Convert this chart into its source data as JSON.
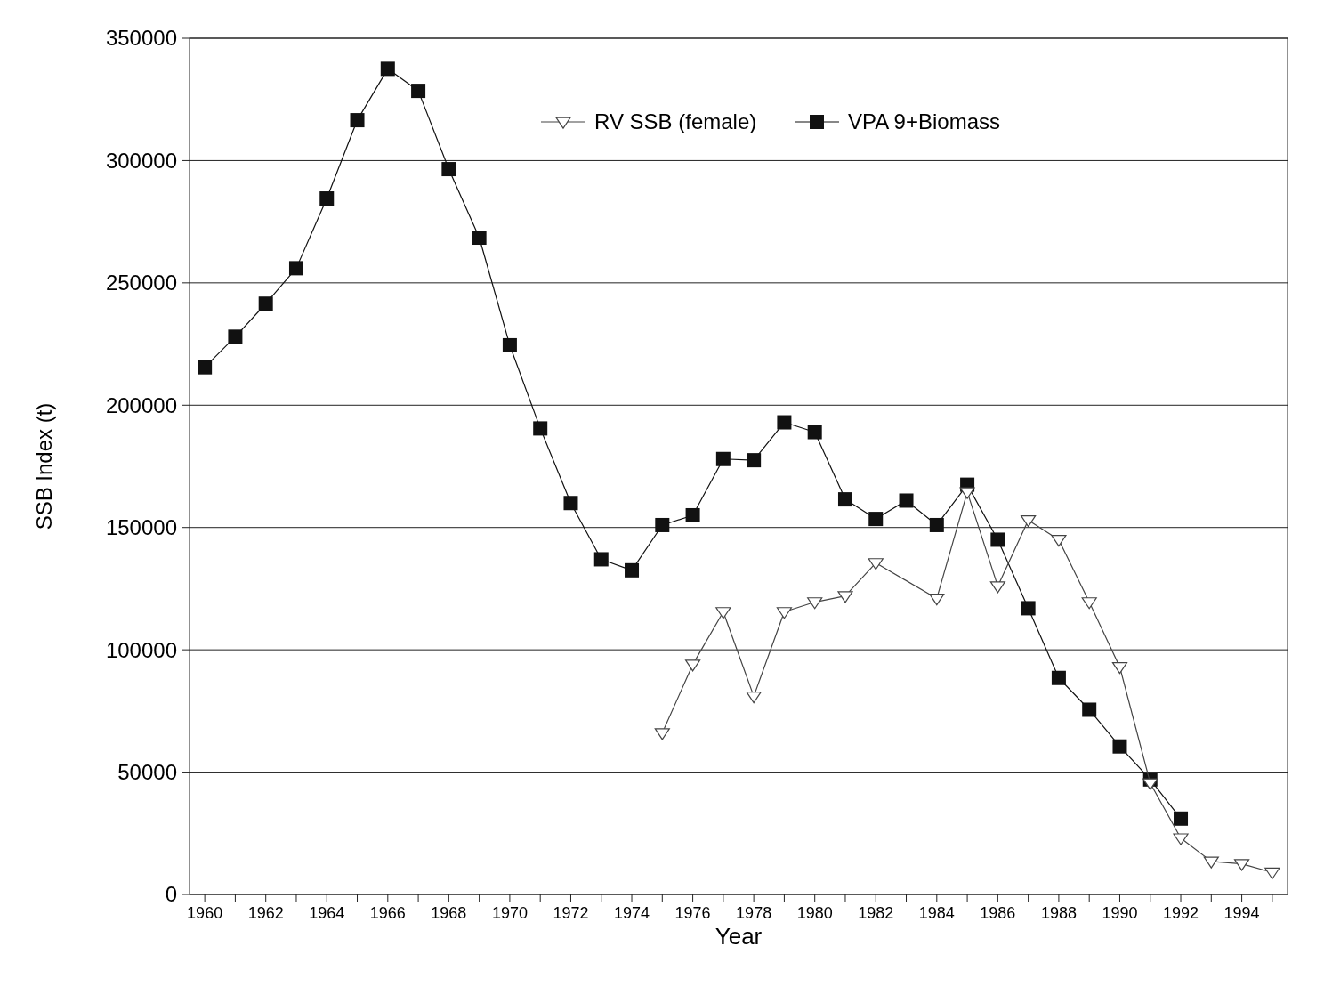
{
  "chart_data": {
    "type": "line",
    "xlabel": "Year",
    "ylabel": "SSB Index (t)",
    "xlim": [
      1959.5,
      1995.5
    ],
    "ylim": [
      0,
      350000
    ],
    "yticks": [
      0,
      50000,
      100000,
      150000,
      200000,
      250000,
      300000,
      350000
    ],
    "xticks": [
      1960,
      {
        "value": 1961,
        "label": null
      },
      1962,
      {
        "value": 1963,
        "label": null
      },
      1964,
      {
        "value": 1965,
        "label": null
      },
      1966,
      {
        "value": 1967,
        "label": null
      },
      1968,
      {
        "value": 1969,
        "label": null
      },
      1970,
      {
        "value": 1971,
        "label": null
      },
      1972,
      {
        "value": 1973,
        "label": null
      },
      1974,
      {
        "value": 1975,
        "label": null
      },
      1976,
      {
        "value": 1977,
        "label": null
      },
      1978,
      {
        "value": 1979,
        "label": null
      },
      1980,
      {
        "value": 1981,
        "label": null
      },
      1982,
      {
        "value": 1983,
        "label": null
      },
      1984,
      {
        "value": 1985,
        "label": null
      },
      1986,
      {
        "value": 1987,
        "label": null
      },
      1988,
      {
        "value": 1989,
        "label": null
      },
      1990,
      {
        "value": 1991,
        "label": null
      },
      1992,
      {
        "value": 1993,
        "label": null
      },
      1994,
      {
        "value": 1995,
        "label": null
      }
    ],
    "grid": "y",
    "legend": "top right",
    "series": [
      {
        "name": "RV SSB (female)",
        "color": "#444444",
        "marker": "triangle",
        "x": [
          1975,
          1976,
          1977,
          1978,
          1979,
          1980,
          1981,
          1982,
          1984,
          1985,
          1986,
          1987,
          1988,
          1989,
          1990,
          1991,
          1992,
          1993,
          1994,
          1995
        ],
        "values": [
          66000,
          94000,
          115500,
          81000,
          115500,
          119500,
          122000,
          135500,
          121000,
          164500,
          126000,
          153000,
          145000,
          119500,
          93000,
          45500,
          23000,
          13500,
          12500,
          9000
        ]
      },
      {
        "name": "VPA 9+Biomass",
        "color": "#111111",
        "marker": "square",
        "x": [
          1960,
          1961,
          1962,
          1963,
          1964,
          1965,
          1966,
          1967,
          1968,
          1969,
          1970,
          1971,
          1972,
          1973,
          1974,
          1975,
          1976,
          1977,
          1978,
          1979,
          1980,
          1981,
          1982,
          1983,
          1984,
          1985,
          1986,
          1987,
          1988,
          1989,
          1990,
          1991,
          1992
        ],
        "values": [
          215500,
          228000,
          241500,
          256000,
          284500,
          316500,
          337500,
          328500,
          296500,
          268500,
          224500,
          190500,
          160000,
          137000,
          132500,
          151000,
          155000,
          178000,
          177500,
          193000,
          189000,
          161500,
          153500,
          161000,
          151000,
          167500,
          145000,
          117000,
          88500,
          75500,
          60500,
          47000,
          31000
        ]
      }
    ]
  }
}
